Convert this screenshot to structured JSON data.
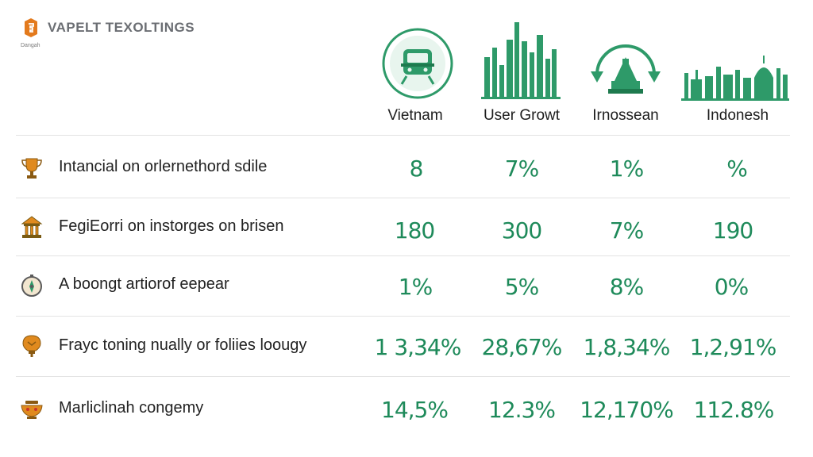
{
  "brand": {
    "title": "VAPELT TEXOLTINGS",
    "subtitle": "Dangah"
  },
  "columns": [
    {
      "label": "Vietnam",
      "icon": "train-badge-icon"
    },
    {
      "label": "User Growt",
      "icon": "skyline-icon"
    },
    {
      "label": "Irnossean",
      "icon": "temple-refresh-icon"
    },
    {
      "label": "Indonesh",
      "icon": "city-landmarks-icon"
    }
  ],
  "rows": [
    {
      "label": "Intancial on orlernethord sdile",
      "icon": "trophy-icon",
      "values": [
        "8",
        "7%",
        "1%",
        "%"
      ]
    },
    {
      "label": "FegiEorri on instorges on brisen",
      "icon": "temple-icon",
      "values": [
        "180",
        "300",
        "7%",
        "190"
      ]
    },
    {
      "label": "A boongt artiorof eepear",
      "icon": "compass-icon",
      "values": [
        "1%",
        "5%",
        "8%",
        "0%"
      ]
    },
    {
      "label": "Frayc toning nually or foliies loougy",
      "icon": "lightbulb-icon",
      "values": [
        "1 3,34%",
        "28,67%",
        "1,8,34%",
        "1,2,91%"
      ]
    },
    {
      "label": "Marliclinah congemy",
      "icon": "bowl-icon",
      "values": [
        "14,5%",
        "12.3%",
        "12,170%",
        "112.8%"
      ]
    }
  ],
  "colors": {
    "accent": "#1e8a5a",
    "icon_green": "#2e9a69",
    "icon_orange": "#e08a1e",
    "divider": "#e3e3e3"
  },
  "chart_data": {
    "type": "table",
    "columns": [
      "Vietnam",
      "User Growt",
      "Irnossean",
      "Indonesh"
    ],
    "rows": [
      {
        "label": "Intancial on orlernethord sdile",
        "values": [
          "8",
          "7%",
          "1%",
          "%"
        ]
      },
      {
        "label": "FegiEorri on instorges on brisen",
        "values": [
          "180",
          "300",
          "7%",
          "190"
        ]
      },
      {
        "label": "A boongt artiorof eepear",
        "values": [
          "1%",
          "5%",
          "8%",
          "0%"
        ]
      },
      {
        "label": "Frayc toning nually or foliies loougy",
        "values": [
          "1 3,34%",
          "28,67%",
          "1,8,34%",
          "1,2,91%"
        ]
      },
      {
        "label": "Marliclinah congemy",
        "values": [
          "14,5%",
          "12.3%",
          "12,170%",
          "112.8%"
        ]
      }
    ]
  }
}
